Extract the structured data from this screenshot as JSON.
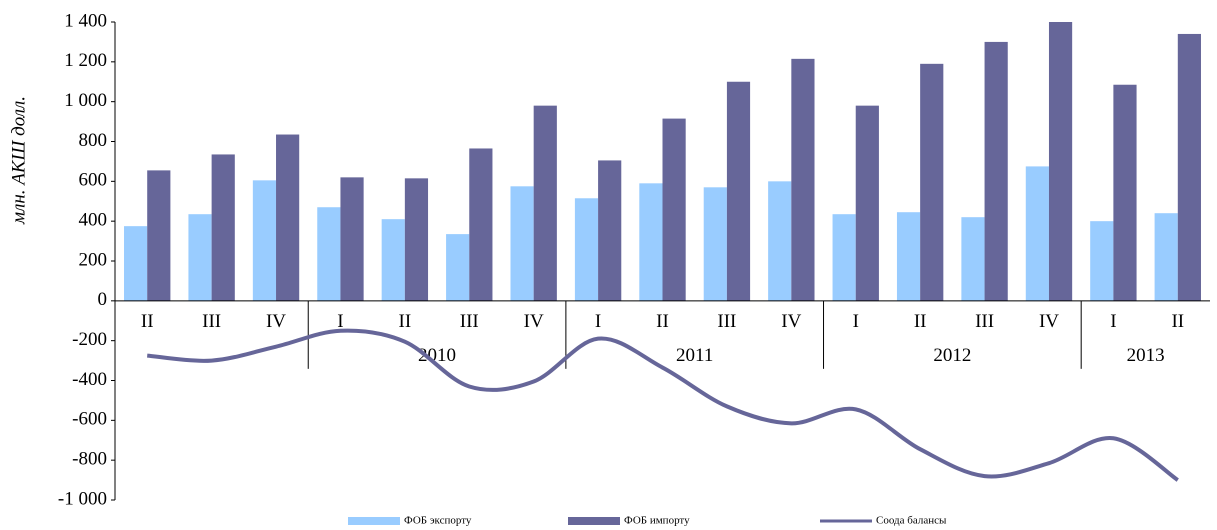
{
  "chart_data": {
    "type": "bar_line",
    "y_axis_label": "млн. АКШ долл.",
    "categories": [
      "II",
      "III",
      "IV",
      "I",
      "II",
      "III",
      "IV",
      "I",
      "II",
      "III",
      "IV",
      "I",
      "II",
      "III",
      "IV",
      "I",
      "II"
    ],
    "category_groups": [
      null,
      null,
      null,
      "2010",
      "2010",
      "2010",
      "2010",
      "2011",
      "2011",
      "2011",
      "2011",
      "2012",
      "2012",
      "2012",
      "2012",
      "2013",
      "2013"
    ],
    "series": [
      {
        "name": "ФОБ экспорту",
        "color": "#99ccff",
        "kind": "bar",
        "values": [
          375,
          435,
          605,
          470,
          410,
          335,
          575,
          515,
          590,
          570,
          600,
          435,
          445,
          420,
          675,
          400,
          440
        ]
      },
      {
        "name": "ФОБ импорту",
        "color": "#666699",
        "kind": "bar",
        "values": [
          655,
          735,
          835,
          620,
          615,
          765,
          980,
          705,
          915,
          1100,
          1215,
          980,
          1190,
          1300,
          1400,
          1085,
          1340
        ]
      },
      {
        "name": "Соода балансы",
        "color": "#666699",
        "kind": "line",
        "values": [
          -275,
          -300,
          -230,
          -150,
          -205,
          -430,
          -405,
          -190,
          -335,
          -530,
          -615,
          -545,
          -745,
          -880,
          -815,
          -690,
          -900
        ]
      }
    ],
    "ylim": [
      -1000,
      1400
    ],
    "yticks": [
      {
        "value": -1000,
        "label": "-1 000"
      },
      -800,
      -600,
      -400,
      -200,
      0,
      200,
      400,
      600,
      800,
      {
        "value": 1000,
        "label": "1 000"
      },
      {
        "value": 1200,
        "label": "1 200"
      },
      {
        "value": 1400,
        "label": "1 400"
      }
    ],
    "legend": "bottom"
  }
}
